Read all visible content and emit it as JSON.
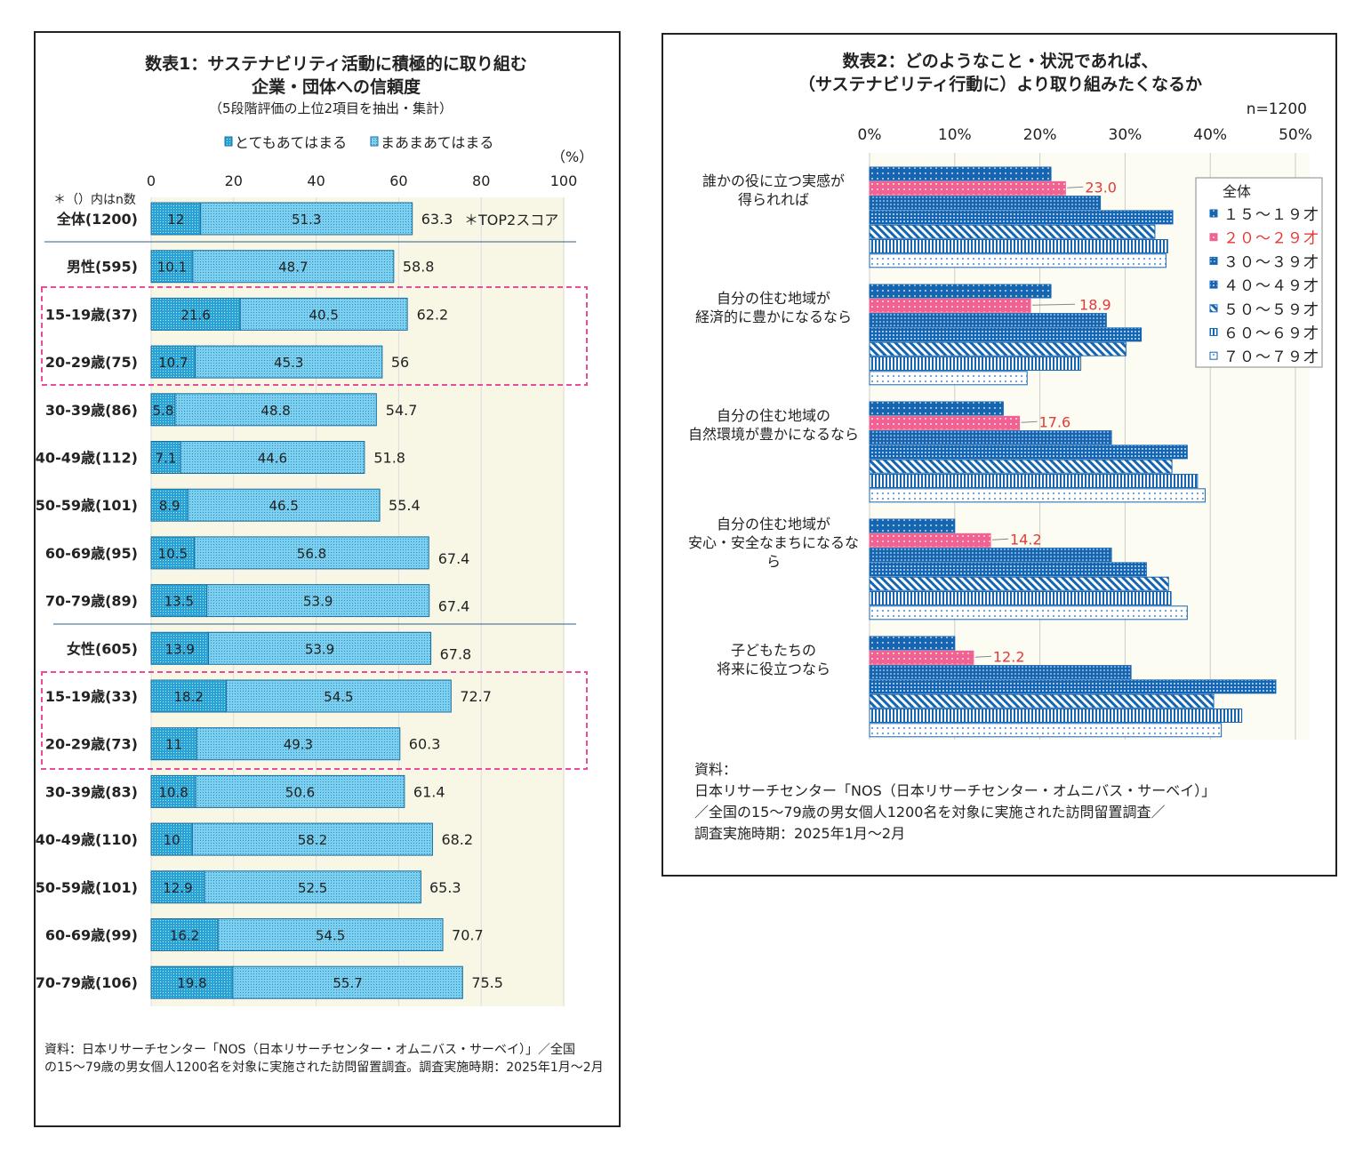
{
  "chart_data": [
    {
      "type": "bar",
      "stacked": true,
      "orientation": "horizontal",
      "title": "数表1：サステナビリティ活動に積極的に取り組む\n企業・団体への信頼度",
      "subtitle": "（5段階評価の上位2項目を抽出・集計）",
      "unit_label": "（%）",
      "n_note": "＊（）内はn数",
      "total_note": "＊TOP2スコア",
      "xlim": [
        0,
        100
      ],
      "xticks": [
        "0",
        "20",
        "40",
        "60",
        "80",
        "100"
      ],
      "legend_position": "top",
      "series": [
        {
          "name": "とてもあてはまる",
          "color": "#29a3d6"
        },
        {
          "name": "まあまあてはまる",
          "color": "#5fc4e8"
        }
      ],
      "categories": [
        "全体(1200)",
        "男性(595)",
        "15-19歳(37)",
        "20-29歳(75)",
        "30-39歳(86)",
        "40-49歳(112)",
        "50-59歳(101)",
        "60-69歳(95)",
        "70-79歳(89)",
        "女性(605)",
        "15-19歳(33)",
        "20-29歳(73)",
        "30-39歳(83)",
        "40-49歳(110)",
        "50-59歳(101)",
        "60-69歳(99)",
        "70-79歳(106)"
      ],
      "values": [
        [
          12,
          51.3,
          63.3
        ],
        [
          10.1,
          48.7,
          58.8
        ],
        [
          21.6,
          40.5,
          62.2
        ],
        [
          10.7,
          45.3,
          56
        ],
        [
          5.8,
          48.8,
          54.7
        ],
        [
          7.1,
          44.6,
          51.8
        ],
        [
          8.9,
          46.5,
          55.4
        ],
        [
          10.5,
          56.8,
          67.4
        ],
        [
          13.5,
          53.9,
          67.4
        ],
        [
          13.9,
          53.9,
          67.8
        ],
        [
          18.2,
          54.5,
          72.7
        ],
        [
          11,
          49.3,
          60.3
        ],
        [
          10.8,
          50.6,
          61.4
        ],
        [
          10,
          58.2,
          68.2
        ],
        [
          12.9,
          52.5,
          65.3
        ],
        [
          16.2,
          54.5,
          70.7
        ],
        [
          19.8,
          55.7,
          75.5
        ]
      ],
      "highlighted_categories": [
        "15-19歳(37)",
        "20-29歳(75)",
        "15-19歳(33)",
        "20-29歳(73)"
      ],
      "source": "資料：日本リサーチセンター「NOS（日本リサーチセンター・オムニバス・サーベイ）」／全国\nの15～79歳の男女個人1200名を対象に実施された訪問留置調査。調査実施時期：2025年1月～2月"
    },
    {
      "type": "bar",
      "orientation": "horizontal",
      "title": "数表2：どのようなこと・状況であれば、\n（サステナビリティ行動に）より取り組みたくなるか",
      "n_label": "n=1200",
      "xlim": [
        0,
        50
      ],
      "xticks": [
        "0%",
        "10%",
        "20%",
        "30%",
        "40%",
        "50%"
      ],
      "grid": true,
      "legend_title": "全体",
      "legend_position": "right",
      "categories": [
        "誰かの役に立つ実感が\n得られれば",
        "自分の住む地域が\n経済的に豊かになるなら",
        "自分の住む地域の\n自然環境が豊かになるなら",
        "自分の住む地域が\n安心・安全なまちになるな\nら",
        "子どもたちの\n将来に役立つなら"
      ],
      "series": [
        {
          "name": "１５～１９才",
          "color": "#1565b0",
          "values": [
            21.3,
            21.3,
            15.7,
            10.0,
            10.0
          ]
        },
        {
          "name": "２０～２９才",
          "color": "#f06292",
          "values": [
            23.0,
            18.9,
            17.6,
            14.2,
            12.2
          ],
          "labels": [
            "23.0",
            "18.9",
            "17.6",
            "14.2",
            "12.2"
          ]
        },
        {
          "name": "３０～３９才",
          "color": "#1565b0",
          "values": [
            27.1,
            27.8,
            28.4,
            28.4,
            30.7
          ]
        },
        {
          "name": "４０～４９才",
          "color": "#1565b0",
          "values": [
            35.6,
            31.9,
            37.3,
            32.5,
            47.7
          ]
        },
        {
          "name": "５０～５９才",
          "color": "#1565b0",
          "values": [
            33.5,
            30.1,
            35.5,
            35.1,
            40.4
          ]
        },
        {
          "name": "６０～６９才",
          "color": "#1565b0",
          "values": [
            35.0,
            24.8,
            38.5,
            35.4,
            43.7
          ]
        },
        {
          "name": "７０～７９才",
          "color": "#ffffff",
          "values": [
            34.8,
            18.5,
            39.4,
            37.3,
            41.3
          ]
        }
      ],
      "label_color": "#e53935",
      "source": "資料：\n日本リサーチセンター「NOS（日本リサーチセンター・オムニバス・サーベイ）」\n／全国の15～79歳の男女個人1200名を対象に実施された訪問留置調査／\n調査実施時期：2025年1月～2月"
    }
  ]
}
